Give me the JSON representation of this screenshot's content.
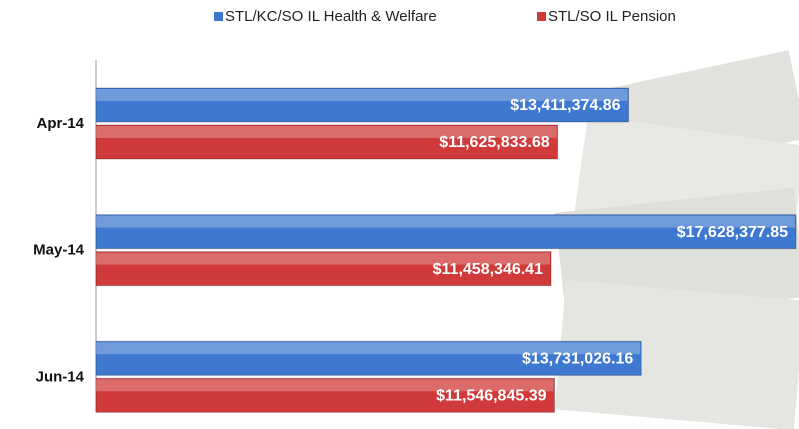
{
  "chart_data": {
    "type": "bar",
    "orientation": "horizontal",
    "categories": [
      "Apr-14",
      "May-14",
      "Jun-14"
    ],
    "series": [
      {
        "name": "STL/KC/SO IL Health & Welfare",
        "color": "#3f78d0",
        "values": [
          13411374.86,
          17628377.85,
          13731026.16
        ],
        "value_labels": [
          "$13,411,374.86",
          "$17,628,377.85",
          "$13,731,026.16"
        ]
      },
      {
        "name": "STL/SO IL Pension",
        "color": "#d13a3a",
        "values": [
          11625833.68,
          11458346.41,
          11546845.39
        ],
        "value_labels": [
          "$11,625,833.68",
          "$11,458,346.41",
          "$11,546,845.39"
        ]
      }
    ],
    "legend": "top"
  }
}
